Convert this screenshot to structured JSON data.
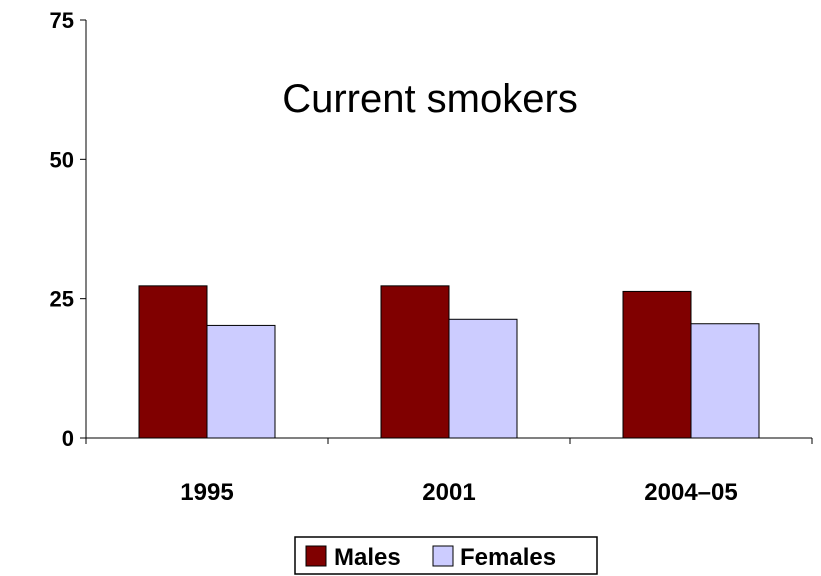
{
  "chart_data": {
    "type": "bar",
    "title": "Current smokers",
    "categories": [
      "1995",
      "2001",
      "2004–05"
    ],
    "series": [
      {
        "name": "Males",
        "values": [
          27.3,
          27.3,
          26.3
        ],
        "color": "#800000"
      },
      {
        "name": "Females",
        "values": [
          20.2,
          21.3,
          20.5
        ],
        "color": "#ccccff"
      }
    ],
    "yticks": [
      "0",
      "25",
      "50",
      "75"
    ],
    "ylim": [
      0,
      75
    ],
    "grid": false,
    "legend": "bottom"
  }
}
